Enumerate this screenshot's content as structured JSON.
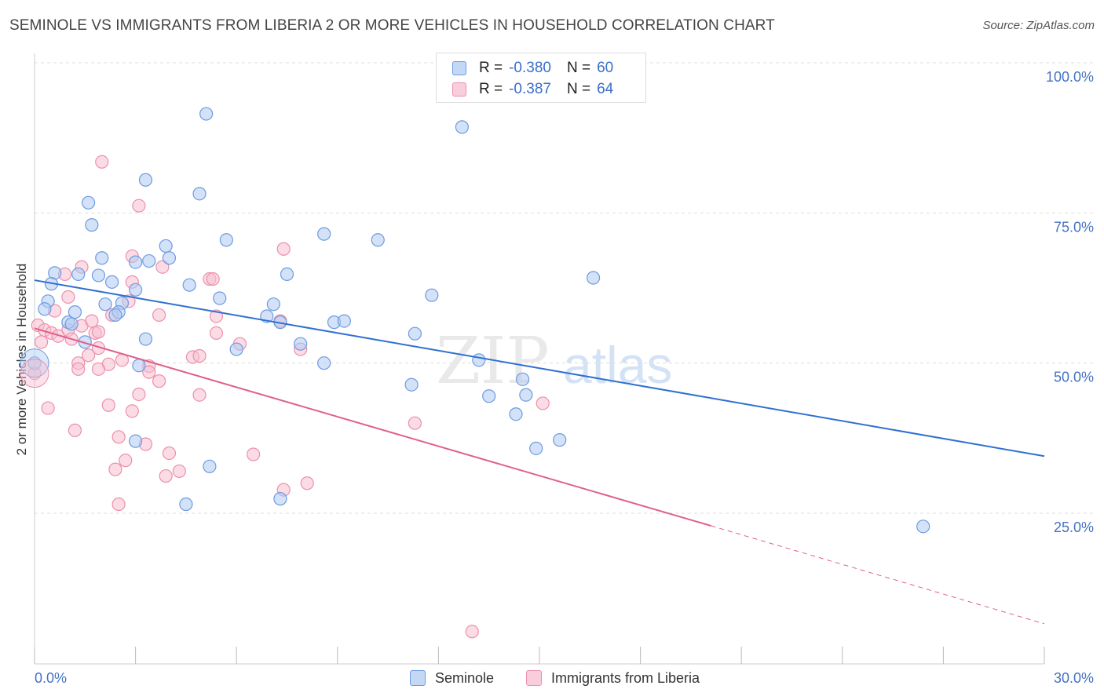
{
  "title": "SEMINOLE VS IMMIGRANTS FROM LIBERIA 2 OR MORE VEHICLES IN HOUSEHOLD CORRELATION CHART",
  "source": "Source: ZipAtlas.com",
  "watermark": {
    "zip": "ZIP",
    "atlas": "atlas"
  },
  "legend": [
    {
      "r_label": "R =",
      "r_value": "-0.380",
      "n_label": "N =",
      "n_value": "60"
    },
    {
      "r_label": "R =",
      "r_value": "-0.387",
      "n_label": "N =",
      "n_value": "64"
    }
  ],
  "chart_data": {
    "type": "scatter",
    "ylabel": "2 or more Vehicles in Household",
    "xlim": [
      0,
      30
    ],
    "ylim": [
      0,
      103
    ],
    "x_tick_labels": [
      "0.0%",
      "30.0%"
    ],
    "y_tick_labels": [
      "25.0%",
      "50.0%",
      "75.0%",
      "100.0%"
    ],
    "y_ticks": [
      25,
      50,
      75,
      100
    ],
    "x_ticks": [
      0,
      3,
      6,
      9,
      12,
      15,
      18,
      21,
      24,
      27,
      30
    ],
    "grid": true,
    "colors": {
      "seminole_fill": "#aecbf2",
      "seminole_stroke": "#6d9be0",
      "seminole_line": "#2f70d0",
      "liberia_fill": "#f7bfd0",
      "liberia_stroke": "#ec8fad",
      "liberia_line": "#e05f8b",
      "tick_text": "#4472c4"
    },
    "series": [
      {
        "name": "Seminole",
        "trend": {
          "x0": 0,
          "y0": 63.8,
          "x1": 30,
          "y1": 34.5
        },
        "points": [
          [
            5.1,
            91.5
          ],
          [
            12.7,
            89.3
          ],
          [
            3.3,
            80.5
          ],
          [
            4.9,
            78.2
          ],
          [
            1.6,
            76.7
          ],
          [
            1.7,
            73.0
          ],
          [
            5.7,
            70.5
          ],
          [
            8.6,
            71.5
          ],
          [
            10.2,
            70.5
          ],
          [
            3.9,
            69.5
          ],
          [
            2.0,
            67.5
          ],
          [
            3.4,
            67.0
          ],
          [
            4.0,
            67.5
          ],
          [
            3.0,
            66.8
          ],
          [
            7.5,
            64.8
          ],
          [
            1.3,
            64.8
          ],
          [
            1.9,
            64.6
          ],
          [
            0.6,
            65.0
          ],
          [
            0.5,
            63.2
          ],
          [
            2.3,
            63.5
          ],
          [
            4.6,
            63.0
          ],
          [
            3.0,
            62.2
          ],
          [
            16.6,
            64.2
          ],
          [
            11.8,
            61.3
          ],
          [
            5.5,
            60.8
          ],
          [
            0.4,
            60.3
          ],
          [
            2.1,
            59.8
          ],
          [
            2.6,
            60.0
          ],
          [
            7.1,
            59.8
          ],
          [
            0.3,
            59.0
          ],
          [
            1.2,
            58.5
          ],
          [
            2.5,
            58.5
          ],
          [
            2.4,
            58.0
          ],
          [
            6.9,
            57.8
          ],
          [
            7.3,
            56.8
          ],
          [
            8.9,
            56.8
          ],
          [
            9.2,
            57.0
          ],
          [
            1.0,
            56.8
          ],
          [
            1.1,
            56.5
          ],
          [
            11.3,
            54.9
          ],
          [
            1.5,
            53.5
          ],
          [
            3.3,
            54.0
          ],
          [
            7.9,
            53.2
          ],
          [
            6.0,
            52.3
          ],
          [
            13.2,
            50.5
          ],
          [
            8.6,
            50.0
          ],
          [
            3.1,
            49.6
          ],
          [
            0.0,
            50.0
          ],
          [
            11.2,
            46.4
          ],
          [
            14.5,
            47.3
          ],
          [
            13.5,
            44.5
          ],
          [
            14.6,
            44.7
          ],
          [
            14.3,
            41.5
          ],
          [
            3.0,
            37.0
          ],
          [
            15.6,
            37.2
          ],
          [
            14.9,
            35.8
          ],
          [
            5.2,
            32.8
          ],
          [
            7.3,
            27.4
          ],
          [
            4.5,
            26.5
          ],
          [
            26.4,
            22.8
          ]
        ]
      },
      {
        "name": "Immigrants from Liberia",
        "trend": {
          "x0": 0,
          "y0": 55.8,
          "x1": 20.1,
          "y1": 22.9
        },
        "trend_dashed": {
          "x0": 20.1,
          "y0": 22.9,
          "x1": 30,
          "y1": 6.6
        },
        "points": [
          [
            2.0,
            83.5
          ],
          [
            3.1,
            76.2
          ],
          [
            7.4,
            69.0
          ],
          [
            3.8,
            66.0
          ],
          [
            2.9,
            67.8
          ],
          [
            1.4,
            66.0
          ],
          [
            0.9,
            64.8
          ],
          [
            5.2,
            64.0
          ],
          [
            2.9,
            63.5
          ],
          [
            1.0,
            61.0
          ],
          [
            2.8,
            60.3
          ],
          [
            0.6,
            58.7
          ],
          [
            2.3,
            58.0
          ],
          [
            3.7,
            58.0
          ],
          [
            5.4,
            57.8
          ],
          [
            0.1,
            56.3
          ],
          [
            1.4,
            56.2
          ],
          [
            0.3,
            55.5
          ],
          [
            1.0,
            55.5
          ],
          [
            1.8,
            55.0
          ],
          [
            0.5,
            55.0
          ],
          [
            0.7,
            54.5
          ],
          [
            1.9,
            55.2
          ],
          [
            7.3,
            57.0
          ],
          [
            1.1,
            54.0
          ],
          [
            0.2,
            53.5
          ],
          [
            6.1,
            53.2
          ],
          [
            1.9,
            52.5
          ],
          [
            7.9,
            52.3
          ],
          [
            1.6,
            51.3
          ],
          [
            4.7,
            51.0
          ],
          [
            4.9,
            51.2
          ],
          [
            1.3,
            50.0
          ],
          [
            2.2,
            49.8
          ],
          [
            1.3,
            49.0
          ],
          [
            1.9,
            49.0
          ],
          [
            3.4,
            49.5
          ],
          [
            3.4,
            48.5
          ],
          [
            0.0,
            48.3
          ],
          [
            3.1,
            44.8
          ],
          [
            4.9,
            44.7
          ],
          [
            15.1,
            43.3
          ],
          [
            2.2,
            43.0
          ],
          [
            0.4,
            42.5
          ],
          [
            2.9,
            42.0
          ],
          [
            11.3,
            40.0
          ],
          [
            1.2,
            38.8
          ],
          [
            2.5,
            37.7
          ],
          [
            3.3,
            36.5
          ],
          [
            4.0,
            35.0
          ],
          [
            6.5,
            34.8
          ],
          [
            2.7,
            33.8
          ],
          [
            2.4,
            32.3
          ],
          [
            4.3,
            32.0
          ],
          [
            3.9,
            31.2
          ],
          [
            8.1,
            30.0
          ],
          [
            7.4,
            28.9
          ],
          [
            2.5,
            26.5
          ],
          [
            13.0,
            5.3
          ],
          [
            5.3,
            64.0
          ],
          [
            2.6,
            50.5
          ],
          [
            1.7,
            57.0
          ],
          [
            5.4,
            55.0
          ],
          [
            3.7,
            47.0
          ]
        ]
      }
    ]
  },
  "bottom_legend": [
    {
      "label": "Seminole"
    },
    {
      "label": "Immigrants from Liberia"
    }
  ]
}
